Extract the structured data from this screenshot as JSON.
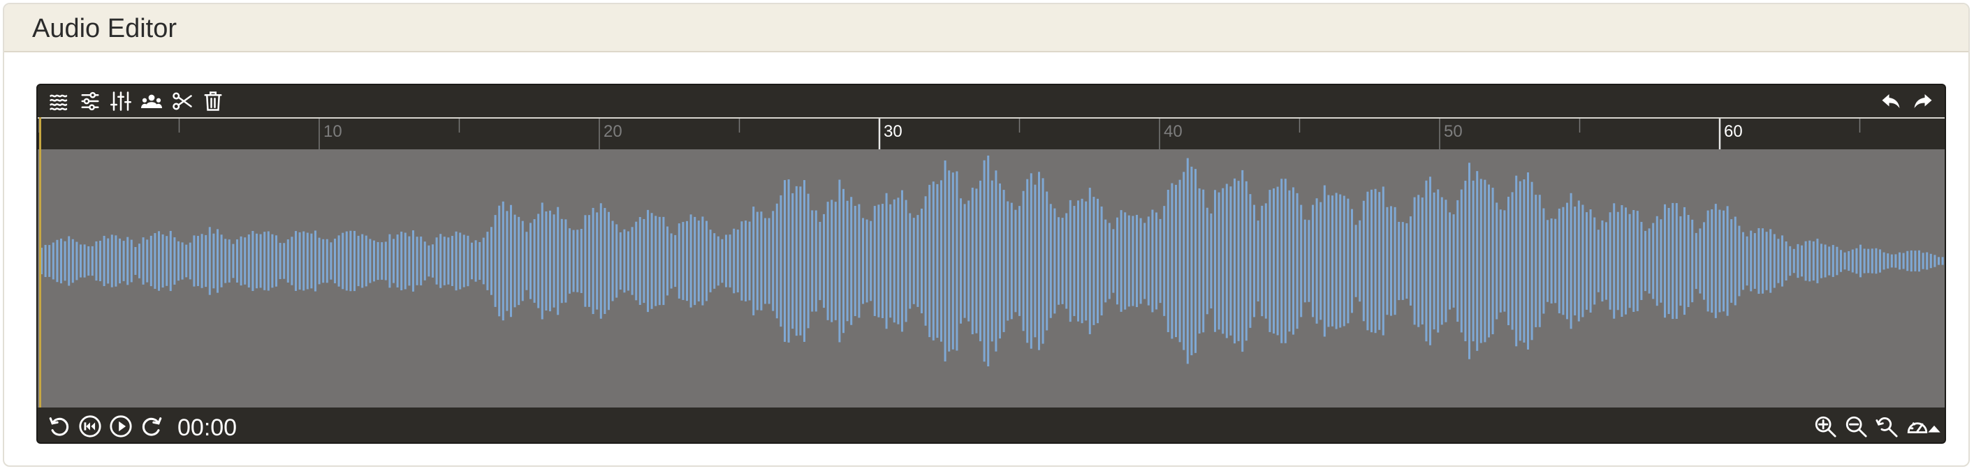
{
  "header": {
    "title": "Audio Editor"
  },
  "toolbar": {
    "left_icons": [
      "waves-icon",
      "sliders-icon",
      "equalizer-icon",
      "speakers-icon",
      "scissors-icon",
      "trash-icon"
    ],
    "right_icons": [
      "undo-icon",
      "redo-icon"
    ]
  },
  "ruler": {
    "labels": [
      "10",
      "20",
      "30",
      "40",
      "50",
      "60"
    ]
  },
  "transport": {
    "time": "00:00",
    "left_icons": [
      "rewind-icon",
      "skip-back-icon",
      "play-icon",
      "forward-icon"
    ],
    "right_icons": [
      "zoom-in-icon",
      "zoom-out-icon",
      "zoom-reset-icon",
      "speed-icon",
      "caret-up-icon"
    ]
  },
  "colors": {
    "header_bg": "#f2eee3",
    "editor_bg": "#2d2b27",
    "wave_bg": "#737170",
    "wave_bar": "#7fa8d4",
    "cursor": "#c8a842"
  }
}
